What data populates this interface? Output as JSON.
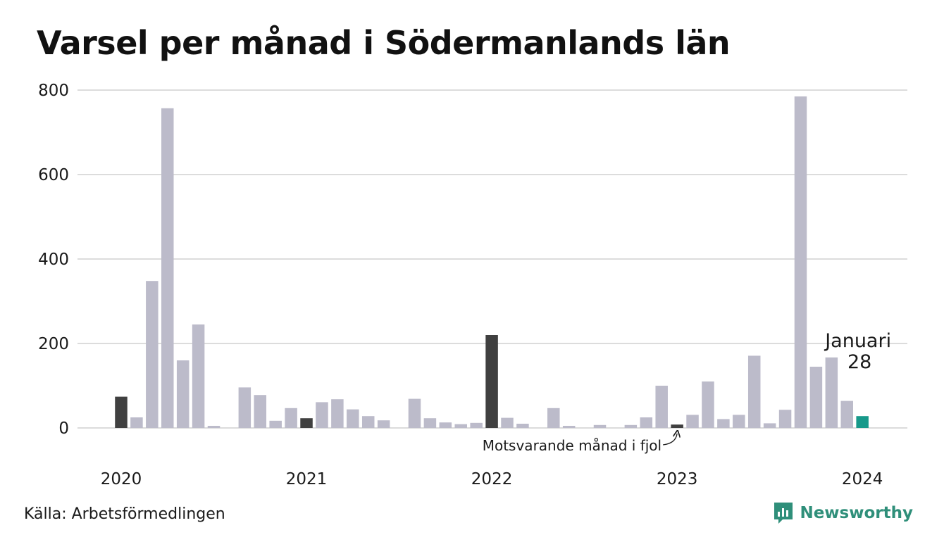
{
  "title": "Varsel per månad i Södermanlands län",
  "source": "Källa: Arbetsförmedlingen",
  "brand": {
    "name": "Newsworthy",
    "icon": "newsworthy-logo-icon"
  },
  "colors": {
    "default_bar": "#bcbbca",
    "same_month_bar": "#404040",
    "highlight_bar": "#17998a",
    "gridline": "#dcdcdc",
    "brand": "#2f8f7a"
  },
  "chart_data": {
    "type": "bar",
    "title": "Varsel per månad i Södermanlands län",
    "xlabel": "",
    "ylabel": "",
    "ylim": [
      0,
      800
    ],
    "yticks": [
      0,
      200,
      400,
      600,
      800
    ],
    "grid": true,
    "year_labels": [
      "2020",
      "2021",
      "2022",
      "2023",
      "2024"
    ],
    "categories": [
      "2020-01",
      "2020-02",
      "2020-03",
      "2020-04",
      "2020-05",
      "2020-06",
      "2020-07",
      "2020-08",
      "2020-09",
      "2020-10",
      "2020-11",
      "2020-12",
      "2021-01",
      "2021-02",
      "2021-03",
      "2021-04",
      "2021-05",
      "2021-06",
      "2021-07",
      "2021-08",
      "2021-09",
      "2021-10",
      "2021-11",
      "2021-12",
      "2022-01",
      "2022-02",
      "2022-03",
      "2022-04",
      "2022-05",
      "2022-06",
      "2022-07",
      "2022-08",
      "2022-09",
      "2022-10",
      "2022-11",
      "2022-12",
      "2023-01",
      "2023-02",
      "2023-03",
      "2023-04",
      "2023-05",
      "2023-06",
      "2023-07",
      "2023-08",
      "2023-09",
      "2023-10",
      "2023-11",
      "2023-12",
      "2024-01"
    ],
    "values": [
      74,
      25,
      348,
      757,
      160,
      245,
      5,
      0,
      96,
      78,
      17,
      47,
      23,
      61,
      68,
      44,
      28,
      18,
      0,
      69,
      23,
      13,
      9,
      12,
      220,
      24,
      10,
      0,
      47,
      5,
      0,
      7,
      0,
      7,
      25,
      100,
      8,
      31,
      110,
      21,
      31,
      171,
      11,
      43,
      785,
      145,
      167,
      64,
      28
    ],
    "same_month_indices": [
      0,
      12,
      24,
      36
    ],
    "highlight_index": 48,
    "highlight_label": {
      "month": "Januari",
      "value": "28"
    },
    "annotation": {
      "text": "Motsvarande månad i fjol",
      "target_index": 36
    }
  }
}
